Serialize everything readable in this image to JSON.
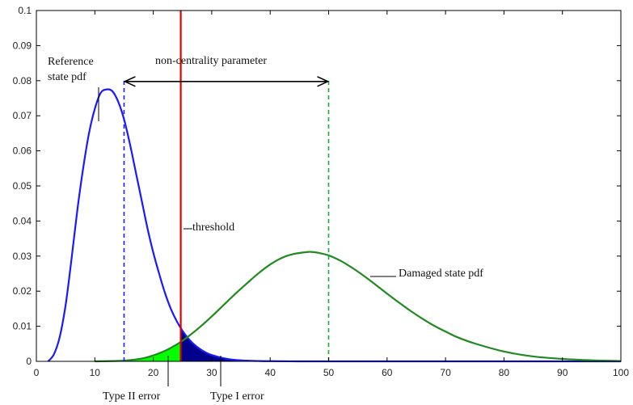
{
  "chart_data": {
    "type": "line",
    "title": "",
    "xlabel": "",
    "ylabel": "",
    "xlim": [
      0,
      100
    ],
    "ylim": [
      0,
      0.1
    ],
    "x_ticks": [
      0,
      10,
      20,
      30,
      40,
      50,
      60,
      70,
      80,
      90,
      100
    ],
    "y_ticks": [
      0,
      0.01,
      0.02,
      0.03,
      0.04,
      0.05,
      0.06,
      0.07,
      0.08,
      0.09,
      0.1
    ],
    "y_tick_labels": [
      "0",
      "0.01",
      "0.02",
      "0.03",
      "0.04",
      "0.05",
      "0.06",
      "0.07",
      "0.08",
      "0.09",
      "0.1"
    ],
    "grid": false,
    "series": [
      {
        "color": "#1a1aff",
        "x": [
          2,
          3,
          4,
          5,
          6,
          7,
          8,
          9,
          10,
          11,
          12,
          13,
          14,
          15,
          16,
          17,
          18,
          19,
          20,
          21,
          22,
          23,
          24,
          25,
          26,
          27,
          28,
          29,
          30,
          32,
          34,
          36,
          38,
          40,
          45,
          50,
          60,
          70,
          80,
          90,
          100
        ],
        "y": [
          0.0,
          0.002,
          0.007,
          0.016,
          0.029,
          0.043,
          0.055,
          0.065,
          0.072,
          0.0765,
          0.0775,
          0.077,
          0.074,
          0.069,
          0.062,
          0.054,
          0.046,
          0.038,
          0.031,
          0.025,
          0.0195,
          0.015,
          0.0115,
          0.0087,
          0.0065,
          0.0048,
          0.0035,
          0.0025,
          0.0018,
          0.0009,
          0.0004,
          0.0002,
          0.0001,
          5e-05,
          0.0,
          0.0,
          0.0,
          0.0,
          0.0,
          0.0,
          0.0
        ]
      },
      {
        "color": "#1f8a1f",
        "x": [
          10,
          15,
          18,
          20,
          22,
          24,
          26,
          28,
          30,
          32,
          34,
          36,
          38,
          40,
          42,
          44,
          46,
          47,
          48,
          50,
          52,
          54,
          56,
          58,
          60,
          62,
          64,
          66,
          68,
          70,
          72,
          75,
          80,
          85,
          90,
          95,
          100
        ],
        "y": [
          0.0,
          0.0002,
          0.0008,
          0.0017,
          0.003,
          0.0048,
          0.0071,
          0.0098,
          0.0128,
          0.016,
          0.0192,
          0.0222,
          0.0251,
          0.0276,
          0.0295,
          0.0306,
          0.0311,
          0.0312,
          0.031,
          0.0302,
          0.0287,
          0.0267,
          0.0244,
          0.0219,
          0.0193,
          0.0168,
          0.0144,
          0.0122,
          0.0102,
          0.0085,
          0.0069,
          0.0051,
          0.0028,
          0.0014,
          0.0007,
          0.0003,
          0.0001
        ]
      }
    ],
    "vlines": [
      {
        "x": 24.7,
        "color": "#e00000",
        "style": "solid",
        "y_top": 0.1
      },
      {
        "x": 15,
        "color": "#1a1aff",
        "style": "dashed",
        "y_top": 0.08
      },
      {
        "x": 50,
        "color": "#1aaa3a",
        "style": "dashed",
        "y_top": 0.08
      }
    ],
    "shaded_regions": [
      {
        "name": "type2",
        "color": "#00ff00",
        "series_index": 1,
        "x_from": 15,
        "x_to": 24.7
      },
      {
        "name": "type1",
        "color": "#00008b",
        "series_index": 0,
        "x_from": 24.7,
        "x_to": 40
      }
    ],
    "arrow": {
      "x_from": 15,
      "x_to": 50,
      "y": 0.08
    },
    "annotations": [
      {
        "id": "reference",
        "lines": [
          "Reference",
          "state pdf"
        ]
      },
      {
        "id": "ncp",
        "lines": [
          "non-centrality parameter"
        ]
      },
      {
        "id": "threshold",
        "lines": [
          "threshold"
        ]
      },
      {
        "id": "damaged",
        "lines": [
          "Damaged state pdf"
        ]
      },
      {
        "id": "type2",
        "lines": [
          "Type II error"
        ]
      },
      {
        "id": "type1",
        "lines": [
          "Type I error"
        ]
      }
    ]
  }
}
